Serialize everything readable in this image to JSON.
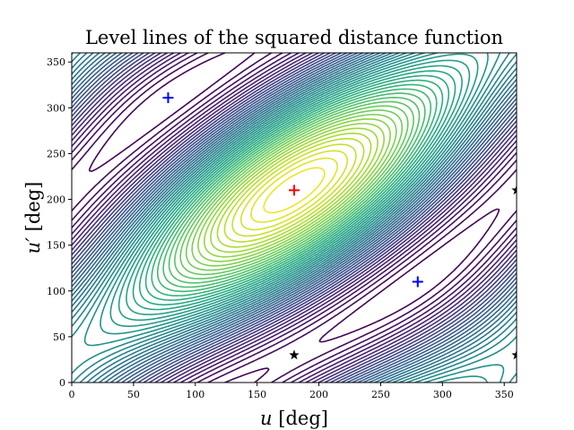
{
  "chart_data": {
    "type": "contour",
    "title": "Level lines of the squared distance function",
    "xlabel_var": "u",
    "xlabel_unit": " [deg]",
    "ylabel_var": "u′",
    "ylabel_unit": " [deg]",
    "xlim": [
      0,
      360
    ],
    "ylim": [
      0,
      360
    ],
    "xticks": [
      0,
      50,
      100,
      150,
      200,
      250,
      300,
      350
    ],
    "yticks": [
      0,
      50,
      100,
      150,
      200,
      250,
      300,
      350
    ],
    "colormap": "viridis",
    "grid": false,
    "markers": {
      "maximum": {
        "points": [
          [
            180,
            210
          ]
        ],
        "symbol": "plus",
        "color": "#ff0000"
      },
      "minima": {
        "points": [
          [
            78,
            311
          ],
          [
            280,
            110
          ]
        ],
        "symbol": "plus",
        "color": "#0000ff"
      },
      "saddles": {
        "points": [
          [
            180,
            30
          ],
          [
            360,
            210
          ],
          [
            360,
            30
          ]
        ],
        "symbol": "star",
        "color": "#000000"
      }
    }
  }
}
